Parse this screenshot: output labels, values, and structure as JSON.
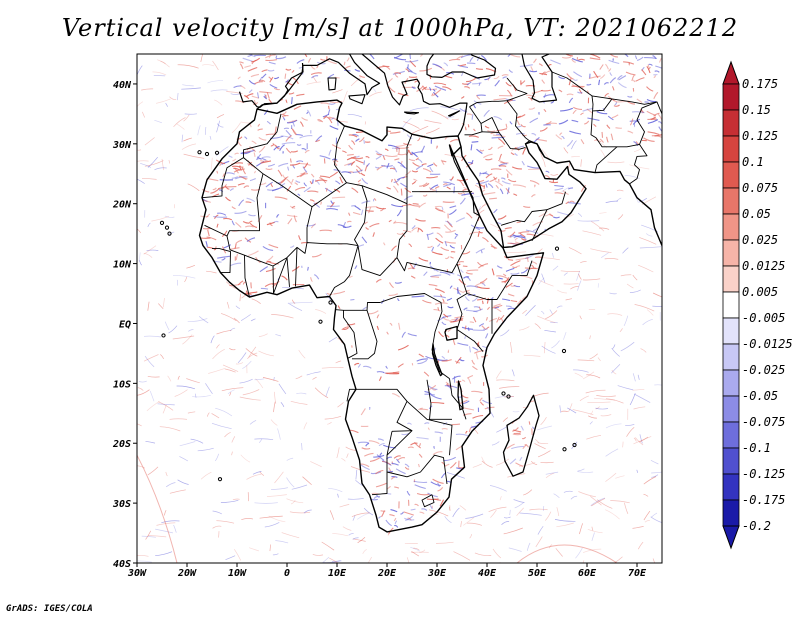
{
  "title": "Vertical velocity [m/s] at 1000hPa, VT: 2021062212",
  "credit": "GrADS: IGES/COLA",
  "map": {
    "lon_range": [
      -30,
      75
    ],
    "lat_range": [
      -40,
      45
    ],
    "lon_ticks": [
      "30W",
      "20W",
      "10W",
      "0",
      "10E",
      "20E",
      "30E",
      "40E",
      "50E",
      "60E",
      "70E"
    ],
    "lat_ticks": [
      "40N",
      "30N",
      "20N",
      "10N",
      "EQ",
      "10S",
      "20S",
      "30S",
      "40S"
    ]
  },
  "colorbar": {
    "levels": [
      {
        "label": "0.175",
        "color": "#b2182b"
      },
      {
        "label": "0.15",
        "color": "#c62f34"
      },
      {
        "label": "0.125",
        "color": "#d6443f"
      },
      {
        "label": "0.1",
        "color": "#e05a50"
      },
      {
        "label": "0.075",
        "color": "#e87669"
      },
      {
        "label": "0.05",
        "color": "#f09587"
      },
      {
        "label": "0.025",
        "color": "#f6b4a8"
      },
      {
        "label": "0.0125",
        "color": "#fad2c9"
      },
      {
        "label": "0.005",
        "color": "#fde8e3"
      },
      {
        "label": "-0.005",
        "color": "#ffffff"
      },
      {
        "label": "-0.0125",
        "color": "#e3e3fb"
      },
      {
        "label": "-0.025",
        "color": "#c8c8f5"
      },
      {
        "label": "-0.05",
        "color": "#aaaaee"
      },
      {
        "label": "-0.075",
        "color": "#8c8ce6"
      },
      {
        "label": "-0.1",
        "color": "#6e6edc"
      },
      {
        "label": "-0.125",
        "color": "#5050cf"
      },
      {
        "label": "-0.175",
        "color": "#3333c0"
      },
      {
        "label": "-0.2",
        "color": "#1a1aa8"
      }
    ],
    "top_color": "#b2182b",
    "bottom_color": "#1a1aa8"
  },
  "field_colors": {
    "up": "#e05a50",
    "down": "#5a5ad8",
    "border": "#000000"
  }
}
